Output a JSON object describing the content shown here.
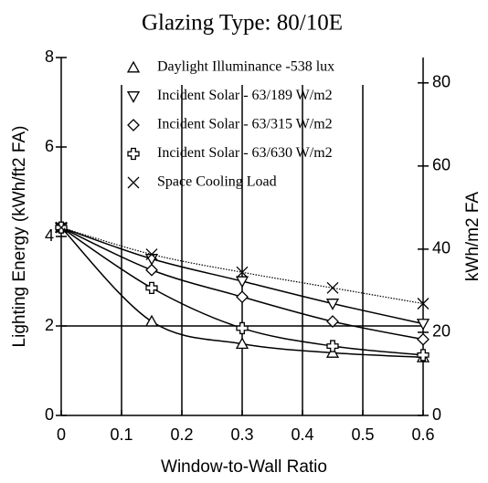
{
  "chart_data": {
    "type": "line",
    "title": "Glazing Type:  80/10E",
    "x_label": "Window-to-Wall Ratio",
    "y_label": "Lighting Energy (kWh/ft2 FA)",
    "y2_label": "kWh/m2 FA",
    "x": [
      0,
      0.15,
      0.3,
      0.45,
      0.6
    ],
    "xlim": [
      0,
      0.6
    ],
    "xticks": [
      0,
      0.1,
      0.2,
      0.3,
      0.4,
      0.5,
      0.6
    ],
    "ylim": [
      0,
      8
    ],
    "yticks": [
      0,
      2,
      4,
      6,
      8
    ],
    "y2lim": [
      0,
      86.1
    ],
    "y2ticks": [
      0,
      20,
      40,
      60,
      80
    ],
    "grid": true,
    "legend": "top",
    "series": [
      {
        "name": "Daylight Illuminance -538 lux",
        "color": "#000000",
        "marker": "triangle-up",
        "line_style": "solid",
        "values": [
          4.2,
          2.1,
          1.6,
          1.4,
          1.3
        ]
      },
      {
        "name": "Incident Solar - 63/189 W/m2",
        "color": "#000000",
        "marker": "triangle-down",
        "line_style": "solid",
        "values": [
          4.2,
          3.5,
          3.0,
          2.5,
          2.05
        ]
      },
      {
        "name": "Incident Solar -  63/315 W/m2",
        "color": "#000000",
        "marker": "diamond",
        "line_style": "solid",
        "values": [
          4.2,
          3.25,
          2.65,
          2.1,
          1.7
        ]
      },
      {
        "name": "Incident Solar - 63/630 W/m2",
        "color": "#000000",
        "marker": "plus",
        "line_style": "solid",
        "values": [
          4.2,
          2.85,
          1.95,
          1.55,
          1.35
        ]
      },
      {
        "name": "Space Cooling Load",
        "color": "#000000",
        "marker": "x",
        "line_style": "dotted",
        "values": [
          4.2,
          3.6,
          3.2,
          2.85,
          2.5
        ]
      }
    ]
  }
}
